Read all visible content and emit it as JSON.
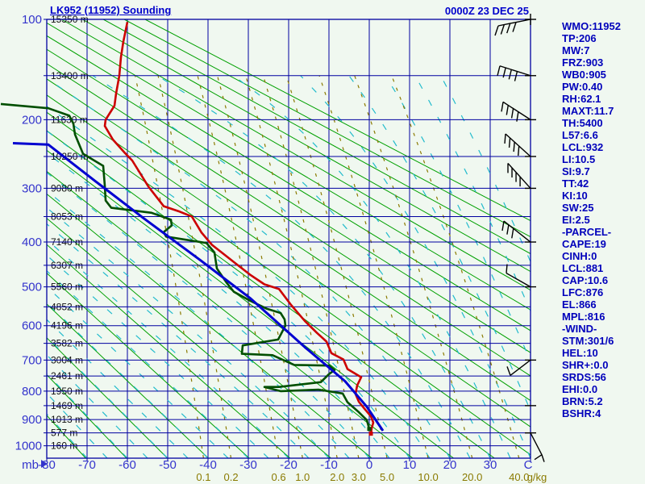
{
  "header": {
    "title": "LK952 (11952) Sounding",
    "datetime": "0000Z 23 DEC 25"
  },
  "stats_panel": {
    "items": [
      "WMO:11952",
      "TP:206",
      "MW:7",
      "FRZ:903",
      "WB0:905",
      "PW:0.40",
      "RH:62.1",
      "MAXT:11.7",
      "TH:5400",
      "L57:6.6",
      "LCL:932",
      "LI:10.5",
      "SI:9.7",
      "TT:42",
      "KI:10",
      "SW:25",
      "EI:2.5",
      "-PARCEL-",
      "CAPE:19",
      "CINH:0",
      "LCL:881",
      "CAP:10.6",
      "LFC:876",
      "EL:866",
      "MPL:816",
      "-WIND-",
      "STM:301/6",
      "HEL:10",
      "SHR+:0.0",
      "SRDS:56",
      "EHI:0.0",
      "BRN:5.2",
      "BSHR:4"
    ]
  },
  "chart_data": {
    "type": "line",
    "subtype": "stuve_sounding",
    "title": "LK952 (11952) Sounding",
    "x_axis": {
      "label": "mb",
      "unit_label": "C",
      "tick_min": -80,
      "tick_max": 30,
      "tick_step": 10,
      "range": [
        -80,
        40
      ]
    },
    "y_axis": {
      "unit": "mb",
      "labeled_ticks": [
        100,
        200,
        300,
        400,
        500,
        600,
        700,
        800,
        900,
        1000
      ],
      "gridline_step_mb": 50,
      "range": [
        100,
        1050
      ],
      "scale_exponent": 0.2857
    },
    "altitude_labels": [
      [
        "15350 m",
        100
      ],
      [
        "13400 m",
        150
      ],
      [
        "11630 m",
        200
      ],
      [
        "10250 m",
        250
      ],
      [
        "9080 m",
        300
      ],
      [
        "8053 m",
        350
      ],
      [
        "7140 m",
        400
      ],
      [
        "6307 m",
        450
      ],
      [
        "5560 m",
        500
      ],
      [
        "4852 m",
        550
      ],
      [
        "4196 m",
        600
      ],
      [
        "3582 m",
        650
      ],
      [
        "3004 m",
        700
      ],
      [
        "2461 m",
        750
      ],
      [
        "1950 m",
        800
      ],
      [
        "1469 m",
        850
      ],
      [
        "1013 m",
        900
      ],
      [
        "577 m",
        950
      ],
      [
        "160 m",
        1000
      ]
    ],
    "isopleths": {
      "dry_adiabats_theta_K": {
        "min": 200,
        "max": 420,
        "step": 10
      },
      "moist_adiabats_start_C": {
        "min": -70,
        "max": 60,
        "step": 5
      },
      "mixing_ratio_g_kg": [
        0.1,
        0.2,
        0.6,
        1.0,
        2.0,
        3.0,
        5.0,
        10.0,
        20.0,
        40.0
      ],
      "mixing_unit_label": "g/kg"
    },
    "series": [
      {
        "name": "temperature",
        "color": "#cc0000",
        "points_p_T": [
          [
            102,
            -60
          ],
          [
            118,
            -61
          ],
          [
            132,
            -61.6
          ],
          [
            150,
            -62
          ],
          [
            169,
            -62.8
          ],
          [
            183,
            -63.2
          ],
          [
            200,
            -65.4
          ],
          [
            208,
            -65.6
          ],
          [
            226,
            -63.6
          ],
          [
            245,
            -60.6
          ],
          [
            256,
            -58.8
          ],
          [
            297,
            -54.8
          ],
          [
            331,
            -51
          ],
          [
            341,
            -47
          ],
          [
            350,
            -44
          ],
          [
            381,
            -41.6
          ],
          [
            406,
            -39
          ],
          [
            426,
            -36
          ],
          [
            444,
            -33.4
          ],
          [
            471,
            -29.6
          ],
          [
            494,
            -26
          ],
          [
            505,
            -22.4
          ],
          [
            545,
            -19.4
          ],
          [
            587,
            -16
          ],
          [
            620,
            -13
          ],
          [
            645,
            -10.6
          ],
          [
            679,
            -9.4
          ],
          [
            698,
            -6.4
          ],
          [
            728,
            -5.4
          ],
          [
            754,
            -2
          ],
          [
            781,
            -3
          ],
          [
            810,
            -3.4
          ],
          [
            836,
            -2.6
          ],
          [
            864,
            -1
          ],
          [
            888,
            0.4
          ],
          [
            911,
            1
          ],
          [
            932,
            0.6
          ],
          [
            953,
            0.4
          ]
        ]
      },
      {
        "name": "dewpoint",
        "color": "#004f00",
        "points_p_T": [
          [
            181,
            -91.4
          ],
          [
            186,
            -79.6
          ],
          [
            195,
            -74.4
          ],
          [
            205,
            -73.4
          ],
          [
            219,
            -73
          ],
          [
            246,
            -71
          ],
          [
            264,
            -66
          ],
          [
            296,
            -65.6
          ],
          [
            321,
            -65.4
          ],
          [
            334,
            -64
          ],
          [
            343,
            -54
          ],
          [
            356,
            -49.2
          ],
          [
            367,
            -49
          ],
          [
            380,
            -51
          ],
          [
            389,
            -50.4
          ],
          [
            402,
            -40.4
          ],
          [
            422,
            -38.4
          ],
          [
            457,
            -37.8
          ],
          [
            490,
            -35.4
          ],
          [
            512,
            -33.6
          ],
          [
            534,
            -29.6
          ],
          [
            555,
            -25.4
          ],
          [
            566,
            -22
          ],
          [
            583,
            -21
          ],
          [
            600,
            -20.8
          ],
          [
            639,
            -22.6
          ],
          [
            656,
            -31.4
          ],
          [
            681,
            -31.6
          ],
          [
            685,
            -24
          ],
          [
            715,
            -18.6
          ],
          [
            717,
            -10
          ],
          [
            731,
            -8.6
          ],
          [
            744,
            -10
          ],
          [
            770,
            -12
          ],
          [
            786,
            -22.4
          ],
          [
            786,
            -26
          ],
          [
            800,
            -22
          ],
          [
            795,
            -12.6
          ],
          [
            808,
            -6.6
          ],
          [
            838,
            -5.4
          ],
          [
            873,
            -2.6
          ],
          [
            902,
            -0.6
          ],
          [
            935,
            0
          ]
        ]
      },
      {
        "name": "parcel",
        "color": "#0000d0",
        "points_p_T": [
          [
            231,
            -88.4
          ],
          [
            233,
            -79.6
          ],
          [
            288,
            -68
          ],
          [
            353,
            -56
          ],
          [
            438,
            -42
          ],
          [
            529,
            -29.4
          ],
          [
            661,
            -16
          ],
          [
            767,
            -6
          ],
          [
            854,
            -0.6
          ],
          [
            942,
            3.4
          ]
        ]
      }
    ],
    "wind_barbs": [
      {
        "p": 100,
        "dx": -40,
        "dy": 8,
        "n": 4,
        "fdx": -4,
        "fdy": 12
      },
      {
        "p": 150,
        "dx": -38,
        "dy": -12,
        "n": 4,
        "fdx": -3,
        "fdy": 12
      },
      {
        "p": 200,
        "dx": -34,
        "dy": -22,
        "n": 4,
        "fdx": -2,
        "fdy": 12
      },
      {
        "p": 250,
        "dx": -31,
        "dy": -28,
        "n": 4,
        "fdx": -1,
        "fdy": 12
      },
      {
        "p": 300,
        "dx": -28,
        "dy": -31,
        "n": 4,
        "fdx": 0,
        "fdy": 12
      },
      {
        "p": 400,
        "dx": -33,
        "dy": -26,
        "n": 3,
        "fdx": -2,
        "fdy": 12
      },
      {
        "p": 500,
        "dx": -30,
        "dy": -17,
        "n": 1,
        "fdx": 1,
        "fdy": -11
      },
      {
        "p": 700,
        "dx": -25,
        "dy": 19,
        "n": 1,
        "fdx": -4,
        "fdy": -11
      },
      {
        "p": 950,
        "dx": 14,
        "dy": 27,
        "n": 0,
        "fdx": 0,
        "fdy": 0,
        "fork": true
      }
    ],
    "barb_tick_levels_mb": [
      100,
      150,
      200,
      250,
      300,
      400,
      500,
      700,
      850,
      950
    ],
    "colors": {
      "grid": "#0000a0",
      "axis_text": "#3333cc",
      "dry_adiabat": "#00a000",
      "moist_adiabat": "#22bbcc",
      "mixing_ratio": "#8a7a00",
      "temperature": "#cc0000",
      "dewpoint": "#004f00",
      "parcel": "#0000d0",
      "wind_barb": "#000000",
      "background": "#f0f8f0",
      "header_text": "#0000cc",
      "stats_text": "#0000bb",
      "altitude_text": "#101010"
    },
    "legend_position": "none",
    "grid": true
  }
}
